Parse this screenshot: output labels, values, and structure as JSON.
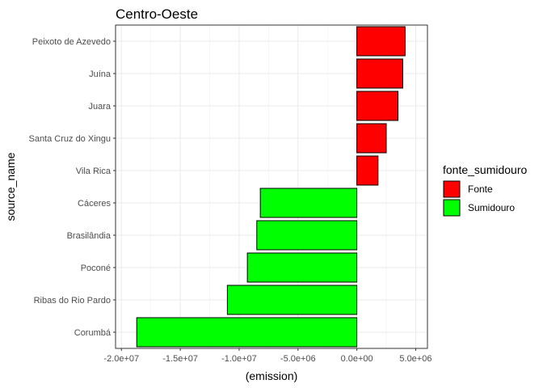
{
  "chart_data": {
    "type": "bar",
    "orientation": "horizontal",
    "title": "Centro-Oeste",
    "xlabel": "(emission)",
    "ylabel": "source_name",
    "xlim": [
      -20500000,
      6000000
    ],
    "x_ticks": [
      -20000000,
      -15000000,
      -10000000,
      -5000000,
      0,
      5000000
    ],
    "x_tick_labels": [
      "-2.0e+07",
      "-1.5e+07",
      "-1.0e+07",
      "-5.0e+06",
      "0.0e+00",
      "5.0e+06"
    ],
    "grid": true,
    "legend": {
      "title": "fonte_sumidouro",
      "placement": "right",
      "entries": [
        {
          "label": "Fonte",
          "color": "#ff0000"
        },
        {
          "label": "Sumidouro",
          "color": "#00ff00"
        }
      ]
    },
    "categories": [
      "Peixoto de Azevedo",
      "Juína",
      "Juara",
      "Santa Cruz do Xingu",
      "Vila Rica",
      "Cáceres",
      "Brasilândia",
      "Poconé",
      "Ribas do Rio Pardo",
      "Corumbá"
    ],
    "values": [
      4100000,
      3900000,
      3500000,
      2500000,
      1800000,
      -8200000,
      -8500000,
      -9300000,
      -11000000,
      -18700000
    ],
    "groups": [
      "Fonte",
      "Fonte",
      "Fonte",
      "Fonte",
      "Fonte",
      "Sumidouro",
      "Sumidouro",
      "Sumidouro",
      "Sumidouro",
      "Sumidouro"
    ]
  }
}
